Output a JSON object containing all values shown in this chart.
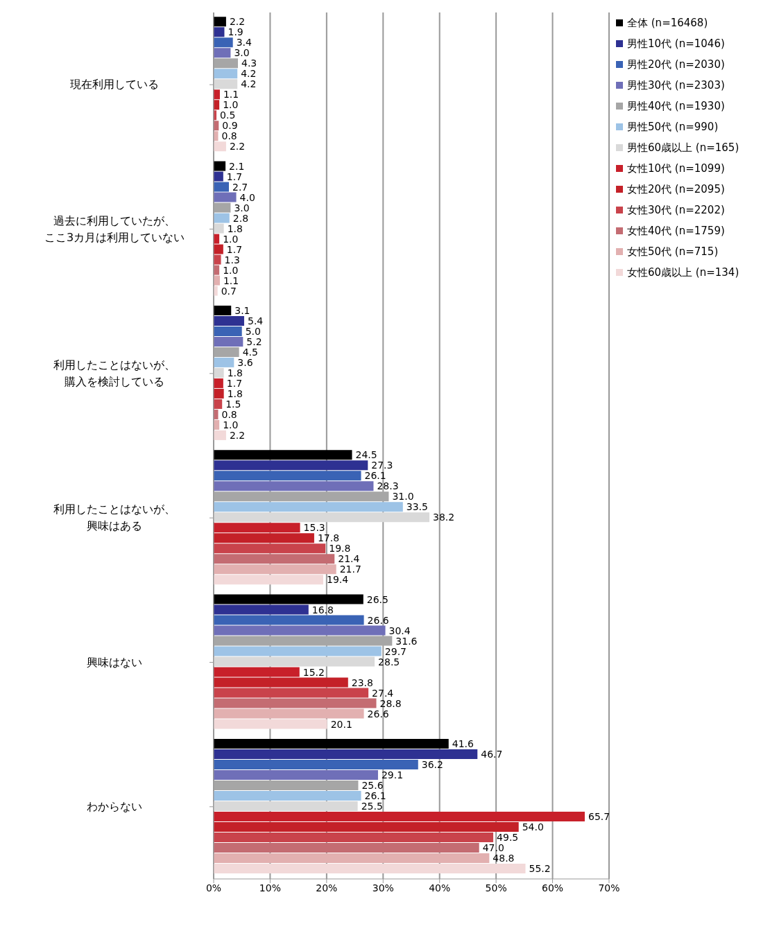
{
  "chart_data": {
    "type": "bar",
    "orientation": "horizontal",
    "categories": [
      "現在利用している",
      "過去に利用していたが、ここ3カ月は利用していない",
      "利用したことはないが、購入を検討している",
      "利用したことはないが、興味はある",
      "興味はない",
      "わからない"
    ],
    "series": [
      {
        "name": "全体 (n=16468)",
        "color": "#000000",
        "values": [
          2.2,
          2.1,
          3.1,
          24.5,
          26.5,
          41.6
        ],
        "value_labels": [
          "2.2",
          "2.1",
          "3.1",
          "24.5",
          "26.5",
          "41.6"
        ]
      },
      {
        "name": "男性10代 (n=1046)",
        "color": "#2e3192",
        "values": [
          1.9,
          1.7,
          5.4,
          27.3,
          16.8,
          46.7
        ],
        "value_labels": [
          "1.9",
          "1.7",
          "5.4",
          "27.3",
          "16.8",
          "46.7"
        ]
      },
      {
        "name": "男性20代 (n=2030)",
        "color": "#3a63b5",
        "values": [
          3.4,
          2.7,
          5.0,
          26.1,
          26.6,
          36.2
        ],
        "value_labels": [
          "3.4",
          "2.7",
          "5.0",
          "26.1",
          "26.6",
          "36.2"
        ]
      },
      {
        "name": "男性30代 (n=2303)",
        "color": "#6f6fb8",
        "values": [
          3.0,
          4.0,
          5.2,
          28.3,
          30.4,
          29.1
        ],
        "value_labels": [
          "3.0",
          "4.0",
          "5.2",
          "28.3",
          "30.4",
          "29.1"
        ]
      },
      {
        "name": "男性40代 (n=1930)",
        "color": "#a6a6a6",
        "values": [
          4.3,
          3.0,
          4.5,
          31.0,
          31.6,
          25.6
        ],
        "value_labels": [
          "4.3",
          "3.0",
          "4.5",
          "31.0",
          "31.6",
          "25.6"
        ]
      },
      {
        "name": "男性50代 (n=990)",
        "color": "#9dc3e6",
        "values": [
          4.2,
          2.8,
          3.6,
          33.5,
          29.7,
          26.1
        ],
        "value_labels": [
          "4.2",
          "2.8",
          "3.6",
          "33.5",
          "29.7",
          "26.1"
        ]
      },
      {
        "name": "男性60歳以上 (n=165)",
        "color": "#d9d9d9",
        "values": [
          4.2,
          1.8,
          1.8,
          38.2,
          28.5,
          25.5
        ],
        "value_labels": [
          "4.2",
          "1.8",
          "1.8",
          "38.2",
          "28.5",
          "25.5"
        ]
      },
      {
        "name": "女性10代 (n=1099)",
        "color": "#c8202a",
        "values": [
          1.1,
          1.0,
          1.7,
          15.3,
          15.2,
          65.7
        ],
        "value_labels": [
          "1.1",
          "1.0",
          "1.7",
          "15.3",
          "15.2",
          "65.7"
        ]
      },
      {
        "name": "女性20代 (n=2095)",
        "color": "#c42128",
        "values": [
          1.0,
          1.7,
          1.8,
          17.8,
          23.8,
          54.0
        ],
        "value_labels": [
          "1.0",
          "1.7",
          "1.8",
          "17.8",
          "23.8",
          "54.0"
        ]
      },
      {
        "name": "女性30代 (n=2202)",
        "color": "#c9434b",
        "values": [
          0.5,
          1.3,
          1.5,
          19.8,
          27.4,
          49.5
        ],
        "value_labels": [
          "0.5",
          "1.3",
          "1.5",
          "19.8",
          "27.4",
          "49.5"
        ]
      },
      {
        "name": "女性40代 (n=1759)",
        "color": "#c46c72",
        "values": [
          0.9,
          1.0,
          0.8,
          21.4,
          28.8,
          47.0
        ],
        "value_labels": [
          "0.9",
          "1.0",
          "0.8",
          "21.4",
          "28.8",
          "47.0"
        ]
      },
      {
        "name": "女性50代 (n=715)",
        "color": "#e2b0b0",
        "values": [
          0.8,
          1.1,
          1.0,
          21.7,
          26.6,
          48.8
        ],
        "value_labels": [
          "0.8",
          "1.1",
          "1.0",
          "21.7",
          "26.6",
          "48.8"
        ]
      },
      {
        "name": "女性60歳以上 (n=134)",
        "color": "#f2d9d9",
        "values": [
          2.2,
          0.7,
          2.2,
          19.4,
          20.1,
          55.2
        ],
        "value_labels": [
          "2.2",
          "0.7",
          "2.2",
          "19.4",
          "20.1",
          "55.2"
        ]
      }
    ],
    "xlim": [
      0,
      70
    ],
    "xticks": [
      {
        "value": 0,
        "label": "0%"
      },
      {
        "value": 10,
        "label": "10%"
      },
      {
        "value": 20,
        "label": "20%"
      },
      {
        "value": 30,
        "label": "30%"
      },
      {
        "value": 40,
        "label": "40%"
      },
      {
        "value": 50,
        "label": "50%"
      },
      {
        "value": 60,
        "label": "60%"
      },
      {
        "value": 70,
        "label": "70%"
      }
    ],
    "grid": "x",
    "legend": "top right"
  }
}
